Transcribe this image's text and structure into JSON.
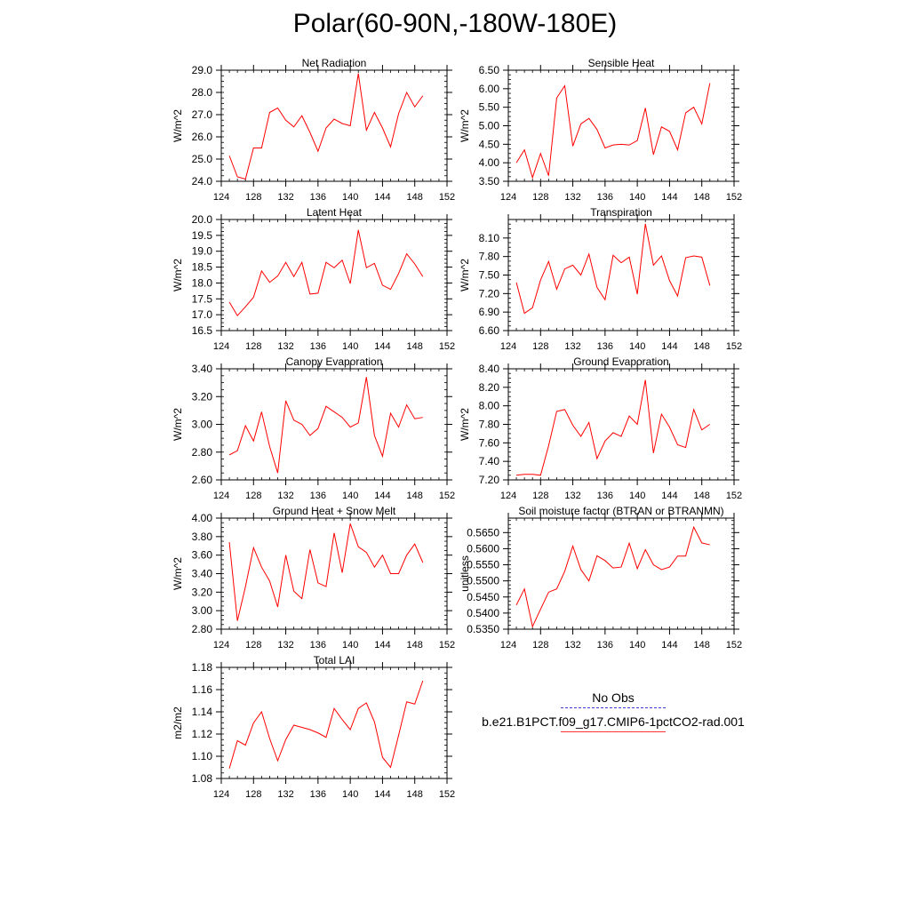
{
  "title": "Polar(60-90N,-180W-180E)",
  "legend": {
    "items": [
      {
        "label": "No Obs",
        "style": "dashed",
        "color": "#3b3bd6"
      },
      {
        "label": "b.e21.B1PCT.f09_g17.CMIP6-1pctCO2-rad.001",
        "style": "solid",
        "color": "#ff0000"
      }
    ]
  },
  "chart_data": [
    {
      "type": "line",
      "title": "Net Radiation",
      "ylabel": "W/m^2",
      "xlim": [
        124,
        152
      ],
      "ylim": [
        24.0,
        29.0
      ],
      "xticks": [
        "124",
        "128",
        "132",
        "136",
        "140",
        "144",
        "148",
        "152"
      ],
      "yticks": [
        "24.0",
        "25.0",
        "26.0",
        "27.0",
        "28.0",
        "29.0"
      ],
      "x": [
        125,
        126,
        127,
        128,
        129,
        130,
        131,
        132,
        133,
        134,
        135,
        136,
        137,
        138,
        139,
        140,
        141,
        142,
        143,
        144,
        145,
        146,
        147,
        148,
        149
      ],
      "series": [
        {
          "color": "#ff0000",
          "values": [
            25.15,
            24.2,
            24.1,
            25.5,
            25.5,
            27.1,
            27.3,
            26.75,
            26.45,
            26.95,
            26.2,
            25.35,
            26.4,
            26.8,
            26.6,
            26.5,
            28.85,
            26.3,
            27.1,
            26.4,
            25.55,
            27.05,
            28.0,
            27.35,
            27.85
          ]
        }
      ]
    },
    {
      "type": "line",
      "title": "Sensible Heat",
      "ylabel": "W/m^2",
      "xlim": [
        124,
        152
      ],
      "ylim": [
        3.5,
        6.5
      ],
      "xticks": [
        "124",
        "128",
        "132",
        "136",
        "140",
        "144",
        "148",
        "152"
      ],
      "yticks": [
        "3.50",
        "4.00",
        "4.50",
        "5.00",
        "5.50",
        "6.00",
        "6.50"
      ],
      "x": [
        125,
        126,
        127,
        128,
        129,
        130,
        131,
        132,
        133,
        134,
        135,
        136,
        137,
        138,
        139,
        140,
        141,
        142,
        143,
        144,
        145,
        146,
        147,
        148,
        149
      ],
      "series": [
        {
          "color": "#ff0000",
          "values": [
            4.0,
            4.35,
            3.6,
            4.25,
            3.65,
            5.75,
            6.08,
            4.45,
            5.05,
            5.2,
            4.9,
            4.4,
            4.48,
            4.5,
            4.48,
            4.6,
            5.48,
            4.22,
            4.97,
            4.85,
            4.35,
            5.35,
            5.5,
            5.05,
            6.15
          ]
        }
      ]
    },
    {
      "type": "line",
      "title": "Latent Heat",
      "ylabel": "W/m^2",
      "xlim": [
        124,
        152
      ],
      "ylim": [
        16.5,
        20.0
      ],
      "xticks": [
        "124",
        "128",
        "132",
        "136",
        "140",
        "144",
        "148",
        "152"
      ],
      "yticks": [
        "16.5",
        "17.0",
        "17.5",
        "18.0",
        "18.5",
        "19.0",
        "19.5",
        "20.0"
      ],
      "x": [
        125,
        126,
        127,
        128,
        129,
        130,
        131,
        132,
        133,
        134,
        135,
        136,
        137,
        138,
        139,
        140,
        141,
        142,
        143,
        144,
        145,
        146,
        147,
        148,
        149
      ],
      "series": [
        {
          "color": "#ff0000",
          "values": [
            17.4,
            16.97,
            17.25,
            17.55,
            18.38,
            18.02,
            18.22,
            18.65,
            18.2,
            18.65,
            17.65,
            17.68,
            18.65,
            18.48,
            18.72,
            17.98,
            19.67,
            18.48,
            18.62,
            17.93,
            17.8,
            18.3,
            18.92,
            18.6,
            18.2
          ]
        }
      ]
    },
    {
      "type": "line",
      "title": "Transpiration",
      "ylabel": "W/m^2",
      "xlim": [
        124,
        152
      ],
      "ylim": [
        6.6,
        8.4
      ],
      "xticks": [
        "124",
        "128",
        "132",
        "136",
        "140",
        "144",
        "148",
        "152"
      ],
      "yticks": [
        "6.60",
        "6.90",
        "7.20",
        "7.50",
        "7.80",
        "8.10"
      ],
      "x": [
        125,
        126,
        127,
        128,
        129,
        130,
        131,
        132,
        133,
        134,
        135,
        136,
        137,
        138,
        139,
        140,
        141,
        142,
        143,
        144,
        145,
        146,
        147,
        148,
        149
      ],
      "series": [
        {
          "color": "#ff0000",
          "values": [
            7.38,
            6.88,
            6.97,
            7.42,
            7.72,
            7.27,
            7.6,
            7.66,
            7.5,
            7.84,
            7.3,
            7.1,
            7.82,
            7.7,
            7.79,
            7.19,
            8.33,
            7.66,
            7.81,
            7.41,
            7.16,
            7.78,
            7.81,
            7.79,
            7.33
          ]
        }
      ]
    },
    {
      "type": "line",
      "title": "Canopy Evaporation",
      "ylabel": "W/m^2",
      "xlim": [
        124,
        152
      ],
      "ylim": [
        2.6,
        3.4
      ],
      "xticks": [
        "124",
        "128",
        "132",
        "136",
        "140",
        "144",
        "148",
        "152"
      ],
      "yticks": [
        "2.60",
        "2.80",
        "3.00",
        "3.20",
        "3.40"
      ],
      "x": [
        125,
        126,
        127,
        128,
        129,
        130,
        131,
        132,
        133,
        134,
        135,
        136,
        137,
        138,
        139,
        140,
        141,
        142,
        143,
        144,
        145,
        146,
        147,
        148,
        149
      ],
      "series": [
        {
          "color": "#ff0000",
          "values": [
            2.78,
            2.81,
            2.99,
            2.88,
            3.09,
            2.84,
            2.65,
            3.17,
            3.03,
            3.0,
            2.92,
            2.97,
            3.13,
            3.09,
            3.05,
            2.98,
            3.01,
            3.34,
            2.92,
            2.77,
            3.08,
            2.98,
            3.14,
            3.04,
            3.05
          ]
        }
      ]
    },
    {
      "type": "line",
      "title": "Ground Evaporation",
      "ylabel": "W/m^2",
      "xlim": [
        124,
        152
      ],
      "ylim": [
        7.2,
        8.4
      ],
      "xticks": [
        "124",
        "128",
        "132",
        "136",
        "140",
        "144",
        "148",
        "152"
      ],
      "yticks": [
        "7.20",
        "7.40",
        "7.60",
        "7.80",
        "8.00",
        "8.20",
        "8.40"
      ],
      "x": [
        125,
        126,
        127,
        128,
        129,
        130,
        131,
        132,
        133,
        134,
        135,
        136,
        137,
        138,
        139,
        140,
        141,
        142,
        143,
        144,
        145,
        146,
        147,
        148,
        149
      ],
      "series": [
        {
          "color": "#ff0000",
          "values": [
            7.25,
            7.26,
            7.26,
            7.25,
            7.57,
            7.94,
            7.96,
            7.79,
            7.67,
            7.82,
            7.43,
            7.62,
            7.71,
            7.67,
            7.89,
            7.8,
            8.28,
            7.49,
            7.91,
            7.77,
            7.58,
            7.55,
            7.96,
            7.74,
            7.8
          ]
        }
      ]
    },
    {
      "type": "line",
      "title": "Ground Heat + Snow Melt",
      "ylabel": "W/m^2",
      "xlim": [
        124,
        152
      ],
      "ylim": [
        2.8,
        4.0
      ],
      "xticks": [
        "124",
        "128",
        "132",
        "136",
        "140",
        "144",
        "148",
        "152"
      ],
      "yticks": [
        "2.80",
        "3.00",
        "3.20",
        "3.40",
        "3.60",
        "3.80",
        "4.00"
      ],
      "x": [
        125,
        126,
        127,
        128,
        129,
        130,
        131,
        132,
        133,
        134,
        135,
        136,
        137,
        138,
        139,
        140,
        141,
        142,
        143,
        144,
        145,
        146,
        147,
        148,
        149
      ],
      "series": [
        {
          "color": "#ff0000",
          "values": [
            3.74,
            2.89,
            3.26,
            3.68,
            3.47,
            3.32,
            3.04,
            3.6,
            3.21,
            3.13,
            3.66,
            3.3,
            3.26,
            3.84,
            3.41,
            3.94,
            3.69,
            3.63,
            3.47,
            3.6,
            3.4,
            3.4,
            3.6,
            3.72,
            3.52
          ]
        }
      ]
    },
    {
      "type": "line",
      "title": "Soil moisture factor (BTRAN or BTRANMN)",
      "ylabel": "unitless",
      "xlim": [
        124,
        152
      ],
      "ylim": [
        0.535,
        0.5695
      ],
      "xticks": [
        "124",
        "128",
        "132",
        "136",
        "140",
        "144",
        "148",
        "152"
      ],
      "yticks": [
        "0.5350",
        "0.5400",
        "0.5450",
        "0.5500",
        "0.5550",
        "0.5600",
        "0.5650"
      ],
      "x": [
        125,
        126,
        127,
        128,
        129,
        130,
        131,
        132,
        133,
        134,
        135,
        136,
        137,
        138,
        139,
        140,
        141,
        142,
        143,
        144,
        145,
        146,
        147,
        148,
        149
      ],
      "series": [
        {
          "color": "#ff0000",
          "values": [
            0.5425,
            0.5475,
            0.5358,
            0.5412,
            0.5465,
            0.5475,
            0.553,
            0.5608,
            0.5535,
            0.55,
            0.5578,
            0.5563,
            0.554,
            0.5543,
            0.5617,
            0.5538,
            0.5597,
            0.555,
            0.5535,
            0.5543,
            0.5577,
            0.5577,
            0.5667,
            0.5618,
            0.5612
          ]
        }
      ]
    },
    {
      "type": "line",
      "title": "Total LAI",
      "ylabel": "m2/m2",
      "xlim": [
        124,
        152
      ],
      "ylim": [
        1.08,
        1.18
      ],
      "xticks": [
        "124",
        "128",
        "132",
        "136",
        "140",
        "144",
        "148",
        "152"
      ],
      "yticks": [
        "1.08",
        "1.10",
        "1.12",
        "1.14",
        "1.16",
        "1.18"
      ],
      "x": [
        125,
        126,
        127,
        128,
        129,
        130,
        131,
        132,
        133,
        134,
        135,
        136,
        137,
        138,
        139,
        140,
        141,
        142,
        143,
        144,
        145,
        146,
        147,
        148,
        149
      ],
      "series": [
        {
          "color": "#ff0000",
          "values": [
            1.089,
            1.114,
            1.11,
            1.13,
            1.14,
            1.116,
            1.096,
            1.115,
            1.128,
            1.126,
            1.124,
            1.121,
            1.117,
            1.143,
            1.133,
            1.124,
            1.143,
            1.148,
            1.131,
            1.099,
            1.09,
            1.119,
            1.149,
            1.147,
            1.168
          ]
        }
      ]
    }
  ]
}
